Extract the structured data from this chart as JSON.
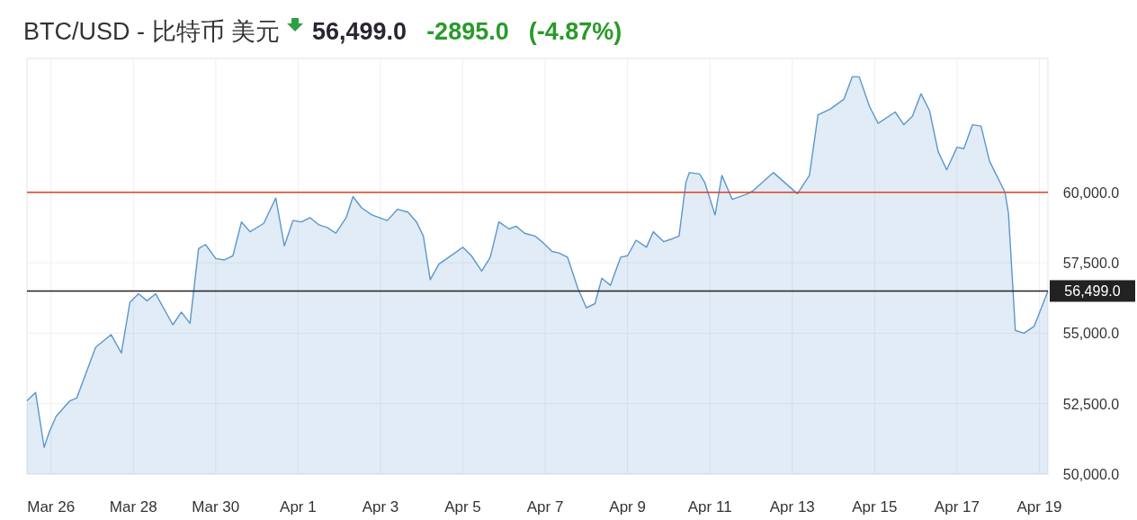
{
  "chart_data": {
    "type": "area",
    "title": "BTC/USD - 比特币 美元",
    "annotations": [
      "56,499.0",
      "-2895.0",
      "(-4.87%)"
    ],
    "x": [
      "--03-25T10:00",
      "--03-25T15:00",
      "--03-25T20:00",
      "--03-25T23:00",
      "--03-26T03:00",
      "--03-26T11:00",
      "--03-26T15:00",
      "--03-27T02:00",
      "--03-27T11:00",
      "--03-27T17:00",
      "--03-27T22:00",
      "--03-28T03:00",
      "--03-28T08:00",
      "--03-28T13:00",
      "--03-28T23:00",
      "--03-29T04:00",
      "--03-29T09:00",
      "--03-29T14:00",
      "--03-29T18:00",
      "--03-30T00:00",
      "--03-30T05:00",
      "--03-30T10:00",
      "--03-30T15:00",
      "--03-30T20:00",
      "--03-31T04:00",
      "--03-31T11:00",
      "--03-31T16:00",
      "--03-31T21:00",
      "--04-01T02:00",
      "--04-01T07:00",
      "--04-01T12:00",
      "--04-01T17:00",
      "--04-01T22:00",
      "--04-02T04:00",
      "--04-02T08:00",
      "--04-02T13:00",
      "--04-02T19:00",
      "--04-03T04:00",
      "--04-03T10:00",
      "--04-03T16:00",
      "--04-03T21:00",
      "--04-04T01:00",
      "--04-04T05:00",
      "--04-04T10:00",
      "--04-05T00:00",
      "--04-05T05:00",
      "--04-05T11:00",
      "--04-05T16:00",
      "--04-05T21:00",
      "--04-06T03:00",
      "--04-06T07:00",
      "--04-06T12:00",
      "--04-06T18:00",
      "--04-06T23:00",
      "--04-07T04:00",
      "--04-07T08:00",
      "--04-07T13:00",
      "--04-07T19:00",
      "--04-08T00:00",
      "--04-08T05:00",
      "--04-08T09:00",
      "--04-08T14:00",
      "--04-08T20:00",
      "--04-09T00:00",
      "--04-09T05:00",
      "--04-09T11:00",
      "--04-09T15:00",
      "--04-09T21:00",
      "--04-10T02:00",
      "--04-10T06:00",
      "--04-10T10:00",
      "--04-10T12:00",
      "--04-10T18:00",
      "--04-10T21:00",
      "--04-11T03:00",
      "--04-11T07:00",
      "--04-11T13:00",
      "--04-11T22:00",
      "--04-12T01:00",
      "--04-12T13:00",
      "--04-13T03:00",
      "--04-13T10:00",
      "--04-13T15:00",
      "--04-13T22:00",
      "--04-14T06:00",
      "--04-14T11:00",
      "--04-14T15:00",
      "--04-14T21:00",
      "--04-15T02:00",
      "--04-15T12:00",
      "--04-15T17:00",
      "--04-15T22:00",
      "--04-16T03:00",
      "--04-16T08:00",
      "--04-16T13:00",
      "--04-16T18:00",
      "--04-17T00:00",
      "--04-17T04:00",
      "--04-17T09:00",
      "--04-17T14:00",
      "--04-17T19:00",
      "--04-18T04:00",
      "--04-18T06:00",
      "--04-18T10:00",
      "--04-18T15:00",
      "--04-18T21:00",
      "--04-19T05:00"
    ],
    "series": [
      {
        "color": "#5b97cc",
        "values": [
          52600,
          52900,
          50950,
          51500,
          52050,
          52600,
          52700,
          54500,
          54950,
          54300,
          56100,
          56400,
          56150,
          56400,
          55300,
          55750,
          55350,
          58000,
          58150,
          57650,
          57600,
          57750,
          58950,
          58600,
          58900,
          59800,
          58100,
          59000,
          58950,
          59100,
          58850,
          58750,
          58550,
          59100,
          59850,
          59450,
          59200,
          59000,
          59400,
          59300,
          58950,
          58450,
          56900,
          57450,
          58050,
          57750,
          57200,
          57700,
          58950,
          58700,
          58800,
          58550,
          58450,
          58200,
          57900,
          57850,
          57700,
          56600,
          55900,
          56050,
          56950,
          56700,
          57700,
          57750,
          58300,
          58050,
          58600,
          58250,
          58350,
          58450,
          60350,
          60700,
          60650,
          60350,
          59200,
          60600,
          59750,
          59950,
          60050,
          60700,
          59950,
          60600,
          62750,
          62950,
          63300,
          64100,
          64100,
          63050,
          62450,
          62850,
          62400,
          62700,
          63500,
          62900,
          61450,
          60800,
          61600,
          61550,
          62400,
          62350,
          61100,
          60000,
          59250,
          55100,
          55000,
          55250,
          56500
        ]
      }
    ],
    "xlim": [
      "--03-25T10:00",
      "--04-19T05:00"
    ],
    "ylim": [
      50000,
      64750
    ],
    "xticks": [
      {
        "value": "--03-26",
        "label": "Mar 26"
      },
      {
        "value": "--03-28",
        "label": "Mar 28"
      },
      {
        "value": "--03-30",
        "label": "Mar 30"
      },
      {
        "value": "--04-01",
        "label": "Apr 1"
      },
      {
        "value": "--04-03",
        "label": "Apr 3"
      },
      {
        "value": "--04-05",
        "label": "Apr 5"
      },
      {
        "value": "--04-07",
        "label": "Apr 7"
      },
      {
        "value": "--04-09",
        "label": "Apr 9"
      },
      {
        "value": "--04-11",
        "label": "Apr 11"
      },
      {
        "value": "--04-13",
        "label": "Apr 13"
      },
      {
        "value": "--04-15",
        "label": "Apr 15"
      },
      {
        "value": "--04-17",
        "label": "Apr 17"
      },
      {
        "value": "--04-19",
        "label": "Apr 19"
      }
    ],
    "yticks": [
      {
        "value": 50000,
        "label": "50,000.0"
      },
      {
        "value": 52500,
        "label": "52,500.0"
      },
      {
        "value": 55000,
        "label": "55,000.0"
      },
      {
        "value": 57500,
        "label": "57,500.0"
      },
      {
        "value": 60000,
        "label": "60,000.0"
      }
    ],
    "ref_lines": [
      {
        "axis": "y",
        "value": 60000,
        "color": "#e2401f"
      },
      {
        "axis": "y",
        "value": 56499,
        "label": "56,499.0",
        "color": "#222222"
      }
    ],
    "grid": true
  }
}
